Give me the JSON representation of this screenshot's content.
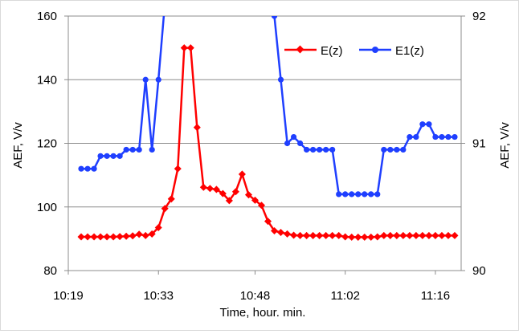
{
  "chart_data": {
    "type": "line",
    "xlabel": "Time, hour. min.",
    "ylabel_left": "AEF, V/v",
    "ylabel_right": "AEF, V/v",
    "x_ticks": [
      "10:19",
      "10:33",
      "10:48",
      "11:02",
      "11:16"
    ],
    "x_range_minutes": [
      619,
      680
    ],
    "y_left": {
      "min": 80,
      "max": 160,
      "ticks": [
        "80",
        "100",
        "120",
        "140",
        "160"
      ]
    },
    "y_right": {
      "min": 90,
      "max": 92,
      "ticks": [
        "90",
        "91",
        "92"
      ]
    },
    "grid": "horizontal",
    "legend_position": "top-right",
    "colors": {
      "E(z)": "#ff0000",
      "E1(z)": "#1f3fff"
    },
    "x_minutes": [
      621,
      622,
      623,
      624,
      625,
      626,
      627,
      628,
      629,
      630,
      631,
      632,
      633,
      634,
      635,
      636,
      637,
      638,
      639,
      640,
      641,
      642,
      643,
      644,
      645,
      646,
      647,
      648,
      649,
      650,
      651,
      652,
      653,
      654,
      655,
      656,
      657,
      658,
      659,
      660,
      661,
      662,
      663,
      664,
      665,
      666,
      667,
      668,
      669,
      670,
      671,
      672,
      673,
      674,
      675,
      676,
      677,
      678,
      679
    ],
    "series": [
      {
        "name": "E(z)",
        "axis": "left",
        "values": [
          90.6,
          90.6,
          90.6,
          90.6,
          90.6,
          90.6,
          90.7,
          90.8,
          90.9,
          91.4,
          91.0,
          91.5,
          93.5,
          99.5,
          102.5,
          112,
          150,
          150,
          125,
          106.2,
          105.8,
          105.5,
          104.2,
          102.0,
          104.8,
          110.3,
          103.8,
          102.1,
          100.5,
          95.5,
          92.5,
          92.0,
          91.5,
          91.1,
          91.0,
          91.0,
          91.0,
          91.0,
          91.0,
          91.0,
          91.0,
          90.6,
          90.5,
          90.5,
          90.5,
          90.5,
          90.6,
          91.0,
          91.0,
          91.0,
          91.0,
          91.0,
          91.0,
          91.0,
          91.0,
          91.0,
          91.0,
          91.0,
          91.0
        ]
      },
      {
        "name": "E1(z)",
        "axis": "right",
        "values": [
          90.8,
          90.8,
          90.8,
          90.9,
          90.9,
          90.9,
          90.9,
          90.95,
          90.95,
          90.95,
          91.5,
          90.95,
          91.5,
          92.1,
          null,
          null,
          null,
          null,
          null,
          null,
          null,
          null,
          null,
          null,
          null,
          null,
          null,
          null,
          null,
          92.1,
          92.0,
          91.5,
          91.0,
          91.05,
          91.0,
          90.95,
          90.95,
          90.95,
          90.95,
          90.95,
          90.6,
          90.6,
          90.6,
          90.6,
          90.6,
          90.6,
          90.6,
          90.95,
          90.95,
          90.95,
          90.95,
          91.05,
          91.05,
          91.15,
          91.15,
          91.05,
          91.05,
          91.05,
          91.05
        ]
      }
    ]
  }
}
